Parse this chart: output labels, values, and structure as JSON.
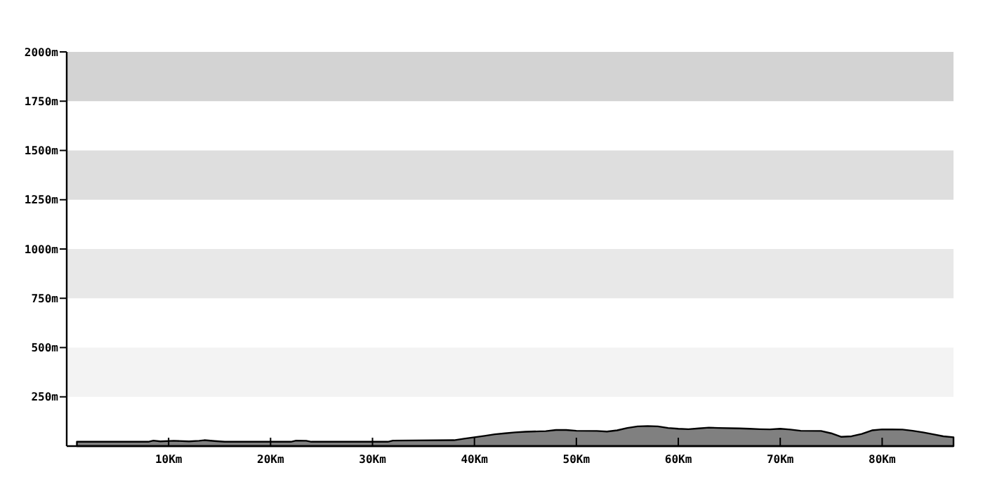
{
  "chart_data": {
    "type": "area",
    "x": [
      1,
      8,
      8.5,
      9.2,
      10.5,
      12,
      13,
      13.5,
      14.5,
      15.5,
      22,
      22.5,
      23.5,
      24,
      31.5,
      32,
      38,
      39,
      40,
      41,
      42,
      43,
      44,
      45,
      47,
      48,
      49,
      50,
      52,
      53,
      54,
      55,
      56,
      57,
      58,
      59,
      60,
      61,
      62,
      63,
      64,
      66,
      67,
      68,
      69,
      70,
      71,
      72,
      74,
      75,
      76,
      77,
      78,
      79,
      80,
      82,
      83,
      84,
      85,
      86,
      87
    ],
    "series": [
      {
        "color": "#808080",
        "values": [
          22,
          22,
          28,
          24,
          27,
          24,
          27,
          30,
          26,
          22,
          22,
          28,
          27,
          22,
          22,
          28,
          30,
          38,
          45,
          52,
          60,
          65,
          70,
          73,
          76,
          82,
          82,
          78,
          77,
          74,
          80,
          92,
          100,
          102,
          100,
          92,
          88,
          86,
          90,
          94,
          92,
          90,
          88,
          86,
          85,
          88,
          84,
          78,
          77,
          65,
          47,
          50,
          62,
          80,
          85,
          84,
          78,
          70,
          60,
          50,
          45
        ]
      }
    ],
    "xlim": [
      0,
      87
    ],
    "xticks": [
      {
        "value": 10,
        "label": "10Km"
      },
      {
        "value": 20,
        "label": "20Km"
      },
      {
        "value": 30,
        "label": "30Km"
      },
      {
        "value": 40,
        "label": "40Km"
      },
      {
        "value": 50,
        "label": "50Km"
      },
      {
        "value": 60,
        "label": "60Km"
      },
      {
        "value": 70,
        "label": "70Km"
      },
      {
        "value": 80,
        "label": "80Km"
      }
    ],
    "ylim": [
      0,
      2000
    ],
    "yticks": [
      {
        "value": 250,
        "label": "250m"
      },
      {
        "value": 500,
        "label": "500m"
      },
      {
        "value": 750,
        "label": "750m"
      },
      {
        "value": 1000,
        "label": "1000m"
      },
      {
        "value": 1250,
        "label": "1250m"
      },
      {
        "value": 1500,
        "label": "1500m"
      },
      {
        "value": 1750,
        "label": "1750m"
      },
      {
        "value": 2000,
        "label": "2000m"
      }
    ],
    "bands": [
      {
        "axis": "y",
        "from": 250,
        "to": 500,
        "color": "#f3f3f3"
      },
      {
        "axis": "y",
        "from": 750,
        "to": 1000,
        "color": "#e8e8e8"
      },
      {
        "axis": "y",
        "from": 1250,
        "to": 1500,
        "color": "#dedede"
      },
      {
        "axis": "y",
        "from": 1750,
        "to": 2000,
        "color": "#d3d3d3"
      }
    ],
    "grid": false
  }
}
